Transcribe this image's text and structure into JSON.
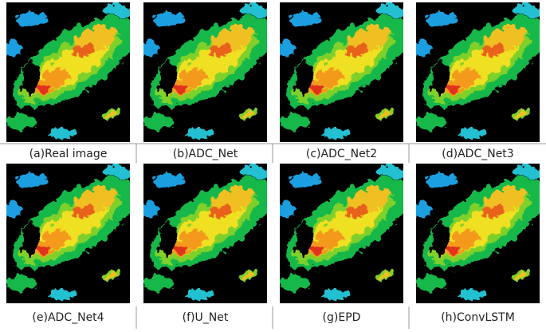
{
  "panels": [
    {
      "caption": "(a)Real image"
    },
    {
      "caption": "(b)ADC_Net"
    },
    {
      "caption": "(c)ADC_Net2"
    },
    {
      "caption": "(d)ADC_Net3"
    },
    {
      "caption": "(e)ADC_Net4"
    },
    {
      "caption": "(f)U_Net"
    },
    {
      "caption": "(g)EPD"
    },
    {
      "caption": "(h)ConvLSTM"
    }
  ]
}
